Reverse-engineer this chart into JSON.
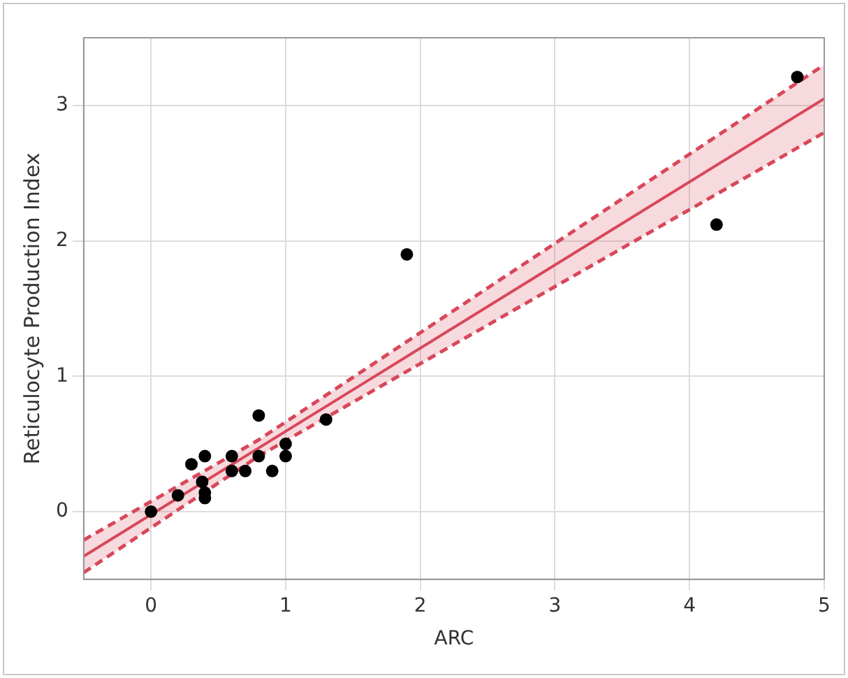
{
  "chart_data": {
    "type": "scatter",
    "xlabel": "ARC",
    "ylabel": "Reticulocyte Production Index",
    "xlim": [
      -0.5,
      5
    ],
    "ylim": [
      -0.5,
      3.5
    ],
    "xticks": [
      0,
      1,
      2,
      3,
      4,
      5
    ],
    "yticks": [
      0,
      1,
      2,
      3
    ],
    "grid": true,
    "legend": false,
    "series": [
      {
        "color": "#000000",
        "marker": "circle",
        "x": [
          0,
          0.2,
          0.3,
          0.4,
          0.38,
          0.4,
          0.4,
          0.6,
          0.6,
          0.7,
          0.8,
          0.8,
          0.9,
          1.0,
          1.0,
          1.3,
          1.9,
          4.2,
          4.8
        ],
        "values": [
          0,
          0.12,
          0.35,
          0.41,
          0.22,
          0.14,
          0.1,
          0.41,
          0.3,
          0.3,
          0.71,
          0.41,
          0.3,
          0.5,
          0.41,
          0.68,
          1.9,
          2.12,
          3.21
        ]
      },
      {
        "type": "line",
        "color": "#d9475a",
        "marker": "none",
        "line_style": "solid",
        "x": [
          -0.5,
          0.8,
          5
        ],
        "values": [
          -0.33,
          0.47,
          3.05
        ],
        "lower": [
          -0.45,
          0.41,
          2.8
        ],
        "upper": [
          -0.21,
          0.53,
          3.3
        ]
      },
      {
        "type": "line",
        "color": "#d9475a",
        "marker": "none",
        "line_style": "dashed",
        "x": [
          -0.5,
          0.8,
          5
        ],
        "values": [
          -0.21,
          0.53,
          3.3
        ]
      },
      {
        "type": "line",
        "color": "#d9475a",
        "marker": "none",
        "line_style": "dashed",
        "x": [
          -0.5,
          0.8,
          5
        ],
        "values": [
          -0.45,
          0.41,
          2.8
        ]
      }
    ]
  }
}
